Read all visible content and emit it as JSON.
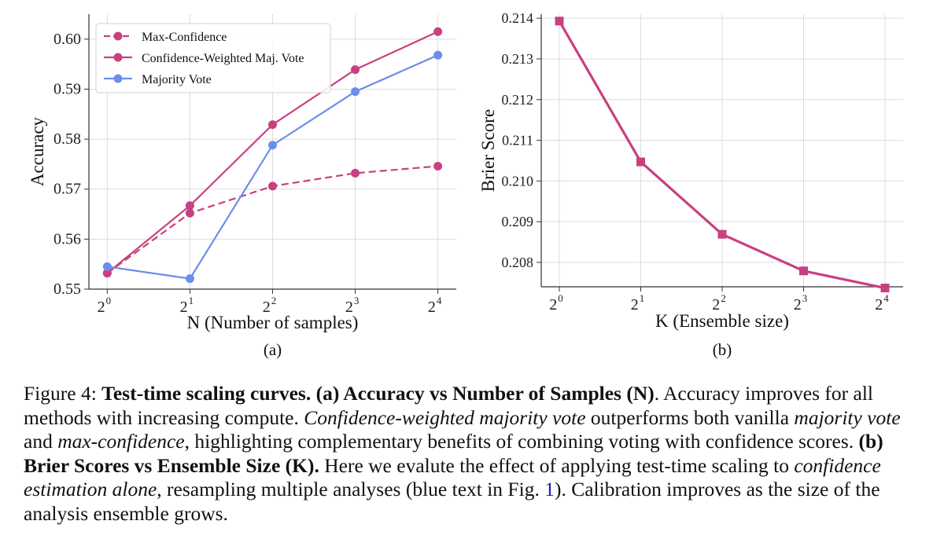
{
  "chart_data": [
    {
      "type": "line",
      "panel_label": "(a)",
      "xlabel": "N (Number of samples)",
      "ylabel": "Accuracy",
      "x_tick_base": "2",
      "x_tick_exponents": [
        "0",
        "1",
        "2",
        "3",
        "4"
      ],
      "x": [
        1,
        2,
        4,
        8,
        16
      ],
      "x_scale": "log2",
      "ylim": [
        0.55,
        0.605
      ],
      "y_ticks": [
        "0.55",
        "0.56",
        "0.57",
        "0.58",
        "0.59",
        "0.60"
      ],
      "grid": true,
      "legend_position": "top-left",
      "series": [
        {
          "name": "Max-Confidence",
          "values": [
            0.5532,
            0.5652,
            0.5706,
            0.5732,
            0.5746
          ],
          "color": "#c8407f",
          "line_style": "dashed",
          "marker": "circle"
        },
        {
          "name": "Confidence-Weighted Maj. Vote",
          "values": [
            0.5532,
            0.5667,
            0.5829,
            0.5939,
            0.6015
          ],
          "color": "#c8407f",
          "line_style": "solid",
          "marker": "circle"
        },
        {
          "name": "Majority Vote",
          "values": [
            0.5545,
            0.5521,
            0.5788,
            0.5895,
            0.5968
          ],
          "color": "#6b8fe8",
          "line_style": "solid",
          "marker": "circle"
        }
      ]
    },
    {
      "type": "line",
      "panel_label": "(b)",
      "xlabel": "K (Ensemble size)",
      "ylabel": "Brier Score",
      "x_tick_base": "2",
      "x_tick_exponents": [
        "0",
        "1",
        "2",
        "3",
        "4"
      ],
      "x": [
        1,
        2,
        4,
        8,
        16
      ],
      "x_scale": "log2",
      "ylim": [
        0.2074,
        0.2141
      ],
      "y_ticks": [
        "0.208",
        "0.209",
        "0.210",
        "0.211",
        "0.212",
        "0.213",
        "0.214"
      ],
      "grid": true,
      "series": [
        {
          "values": [
            0.21393,
            0.21047,
            0.20869,
            0.20779,
            0.20737
          ],
          "color": "#c8407f",
          "line_style": "solid",
          "marker": "square"
        }
      ]
    }
  ],
  "caption": {
    "figure_label": "Figure 4: ",
    "title": "Test-time scaling curves.",
    "part_a_label": "(a) Accuracy vs Number of Samples (N)",
    "text_1": ". Accuracy improves for all methods with increasing compute. ",
    "italic_1": "Confidence-weighted majority vote",
    "text_2": " outperforms both vanilla ",
    "italic_2": "majority vote",
    "text_3": " and ",
    "italic_3": "max-confidence",
    "text_4": ", highlighting complementary benefits of combining voting with confidence scores. ",
    "part_b_label": "(b) Brier Scores vs Ensemble Size (K).",
    "text_5": " Here we evalute the effect of applying test-time scaling to ",
    "italic_4": "confidence estimation alone",
    "text_6": ", resampling multiple analyses (blue text in Fig. ",
    "figure_ref": "1",
    "text_7": "). Calibration improves as the size of the analysis ensemble grows."
  }
}
